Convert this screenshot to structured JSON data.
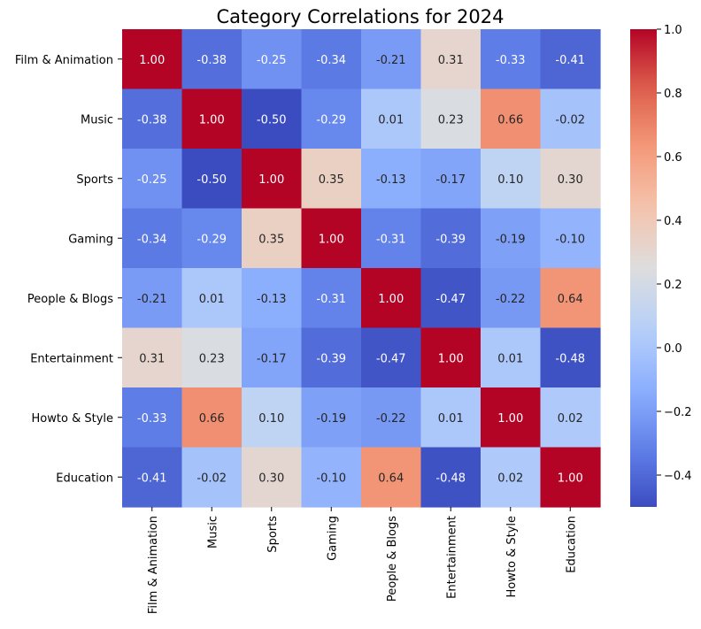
{
  "chart_data": {
    "type": "heatmap",
    "title": "Category Correlations for 2024",
    "xlabel": "",
    "ylabel": "",
    "categories": [
      "Film & Animation",
      "Music",
      "Sports",
      "Gaming",
      "People & Blogs",
      "Entertainment",
      "Howto & Style",
      "Education"
    ],
    "values": [
      [
        1.0,
        -0.38,
        -0.25,
        -0.34,
        -0.21,
        0.31,
        -0.33,
        -0.41
      ],
      [
        -0.38,
        1.0,
        -0.5,
        -0.29,
        0.01,
        0.23,
        0.66,
        -0.02
      ],
      [
        -0.25,
        -0.5,
        1.0,
        0.35,
        -0.13,
        -0.17,
        0.1,
        0.3
      ],
      [
        -0.34,
        -0.29,
        0.35,
        1.0,
        -0.31,
        -0.39,
        -0.19,
        -0.1
      ],
      [
        -0.21,
        0.01,
        -0.13,
        -0.31,
        1.0,
        -0.47,
        -0.22,
        0.64
      ],
      [
        0.31,
        0.23,
        -0.17,
        -0.39,
        -0.47,
        1.0,
        0.01,
        -0.48
      ],
      [
        -0.33,
        0.66,
        0.1,
        -0.19,
        -0.22,
        0.01,
        1.0,
        0.02
      ],
      [
        -0.41,
        -0.02,
        0.3,
        -0.1,
        0.64,
        -0.48,
        0.02,
        1.0
      ]
    ],
    "colormap": "coolwarm",
    "vmin": -0.5,
    "vmax": 1.0,
    "colorbar_ticks": [
      "−0.4",
      "−0.2",
      "0.0",
      "0.2",
      "0.4",
      "0.6",
      "0.8",
      "1.0"
    ],
    "colorbar_values": [
      -0.4,
      -0.2,
      0.0,
      0.2,
      0.4,
      0.6,
      0.8,
      1.0
    ],
    "annotation_format": "2 decimals"
  }
}
